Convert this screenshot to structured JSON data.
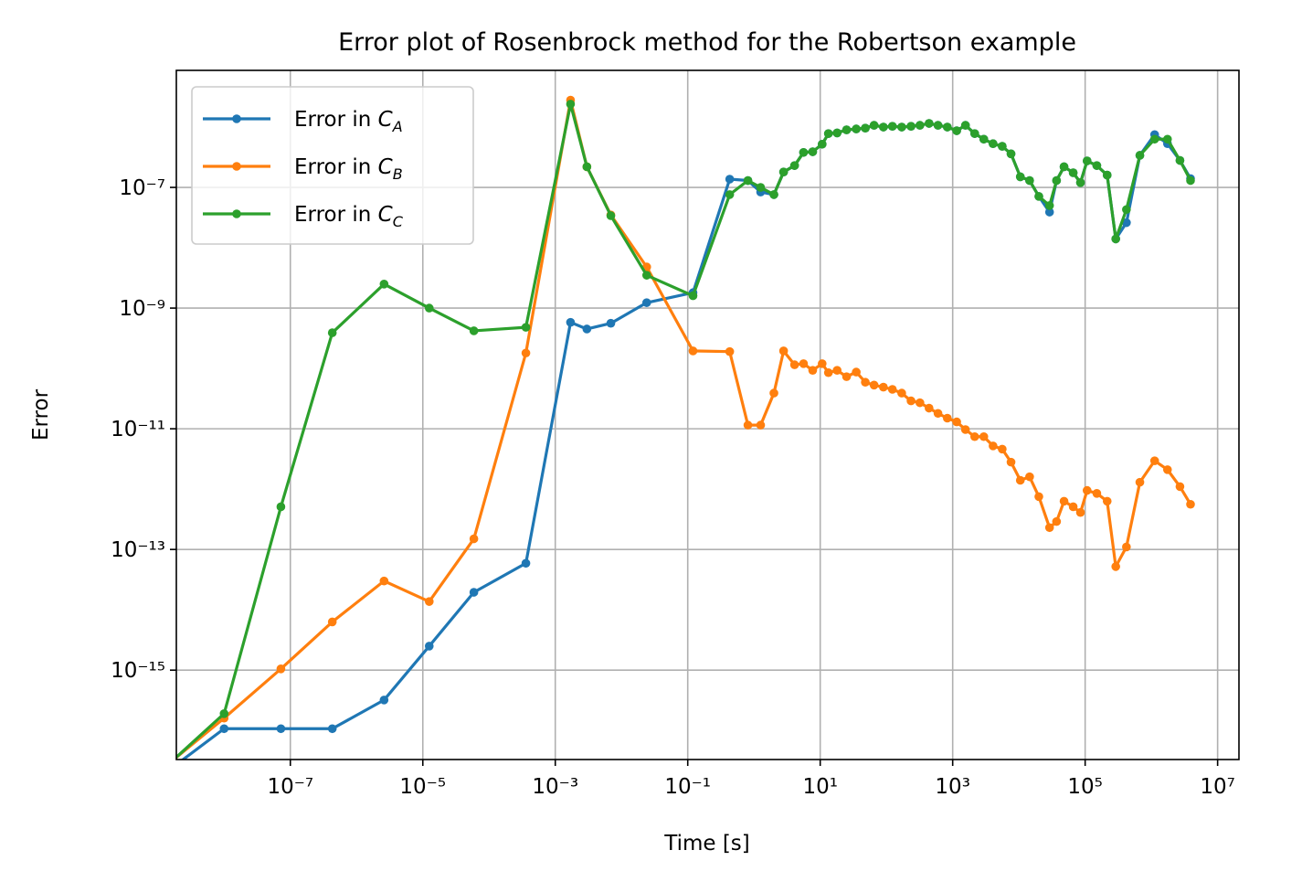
{
  "chart_data": {
    "type": "line",
    "title": "Error plot of Rosenbrock method for the Robertson example",
    "x_label": "Time [s]",
    "y_label": "Error",
    "x_scale": "log",
    "y_scale": "log",
    "grid": true,
    "legend": "upper left",
    "xlim": [
      1.9e-09,
      21000000.0
    ],
    "ylim": [
      3.3e-17,
      8.7e-06
    ],
    "xticks": [
      {
        "value": 1e-07,
        "label": "10⁻⁷"
      },
      {
        "value": 1e-05,
        "label": "10⁻⁵"
      },
      {
        "value": 0.001,
        "label": "10⁻³"
      },
      {
        "value": 0.1,
        "label": "10⁻¹"
      },
      {
        "value": 10,
        "label": "10¹"
      },
      {
        "value": 1000,
        "label": "10³"
      },
      {
        "value": 100000,
        "label": "10⁵"
      },
      {
        "value": 10000000,
        "label": "10⁷"
      }
    ],
    "yticks": [
      {
        "value": 1e-15,
        "label": "10⁻¹⁵"
      },
      {
        "value": 1e-13,
        "label": "10⁻¹³"
      },
      {
        "value": 1e-11,
        "label": "10⁻¹¹"
      },
      {
        "value": 1e-09,
        "label": "10⁻⁹"
      },
      {
        "value": 1e-07,
        "label": "10⁻⁷"
      }
    ],
    "x": [
      1e-09,
      1e-08,
      7.2e-08,
      4.3e-07,
      2.6e-06,
      1.25e-05,
      5.9e-05,
      0.00036,
      0.0017,
      0.003,
      0.0069,
      0.024,
      0.12,
      0.43,
      0.81,
      1.26,
      2.0,
      2.8,
      4.1,
      5.6,
      7.7,
      10.7,
      13.3,
      18,
      25,
      35,
      48,
      65,
      90,
      123,
      170,
      235,
      320,
      440,
      600,
      830,
      1150,
      1560,
      2150,
      2950,
      4070,
      5600,
      7600,
      10500,
      14500,
      20000,
      29000,
      37000,
      48000,
      66000,
      85000,
      107000,
      150000,
      215000,
      290000,
      420000,
      670000,
      1120000,
      1750000,
      2700000,
      3900000
    ],
    "series": [
      {
        "name": "Error in C_A",
        "color": "#1f77b4",
        "values": [
          1.6e-17,
          1.07e-16,
          1.07e-16,
          1.07e-16,
          3.2e-16,
          2.5e-15,
          1.95e-14,
          5.9e-14,
          5.8e-10,
          4.5e-10,
          5.6e-10,
          1.23e-09,
          1.8e-09,
          1.37e-07,
          1.3e-07,
          8.4e-08,
          7.6e-08,
          1.8e-07,
          2.3e-07,
          3.8e-07,
          3.9e-07,
          5.2e-07,
          7.8e-07,
          8e-07,
          9e-07,
          9.3e-07,
          9.6e-07,
          1.07e-06,
          1e-06,
          1.03e-06,
          1e-06,
          1.03e-06,
          1.07e-06,
          1.15e-06,
          1.07e-06,
          1e-06,
          8.7e-07,
          1.07e-06,
          7.8e-07,
          6.3e-07,
          5.3e-07,
          4.8e-07,
          3.6e-07,
          1.5e-07,
          1.3e-07,
          7.1e-08,
          3.9e-08,
          1.3e-07,
          2.2e-07,
          1.75e-07,
          1.2e-07,
          2.75e-07,
          2.3e-07,
          1.6e-07,
          1.4e-08,
          2.6e-08,
          3.4e-07,
          7.5e-07,
          5.3e-07,
          2.8e-07,
          1.4e-07
        ]
      },
      {
        "name": "Error in C_B",
        "color": "#ff7f0e",
        "values": [
          2e-17,
          1.6e-16,
          1.05e-15,
          6.3e-15,
          3e-14,
          1.37e-14,
          1.5e-13,
          1.8e-10,
          2.8e-06,
          2.2e-07,
          3.5e-08,
          4.8e-09,
          1.95e-10,
          1.9e-10,
          1.15e-11,
          1.15e-11,
          3.9e-11,
          1.95e-10,
          1.15e-10,
          1.2e-10,
          9.3e-11,
          1.2e-10,
          8.5e-11,
          9.3e-11,
          7.3e-11,
          8.7e-11,
          5.9e-11,
          5.3e-11,
          4.9e-11,
          4.5e-11,
          3.9e-11,
          2.9e-11,
          2.7e-11,
          2.2e-11,
          1.8e-11,
          1.5e-11,
          1.3e-11,
          9.7e-12,
          7.4e-12,
          7.4e-12,
          5.2e-12,
          4.6e-12,
          2.8e-12,
          1.4e-12,
          1.6e-12,
          7.5e-13,
          2.3e-13,
          2.9e-13,
          6.3e-13,
          5.1e-13,
          4.1e-13,
          9.5e-13,
          8.5e-13,
          6.3e-13,
          5.2e-14,
          1.1e-13,
          1.3e-12,
          2.95e-12,
          2.1e-12,
          1.1e-12,
          5.6e-13
        ]
      },
      {
        "name": "Error in C_C",
        "color": "#2ca02c",
        "values": [
          1.9e-17,
          1.9e-16,
          5.1e-13,
          3.9e-10,
          2.5e-09,
          1e-09,
          4.2e-10,
          4.8e-10,
          2.4e-06,
          2.2e-07,
          3.4e-08,
          3.5e-09,
          1.6e-09,
          7.6e-08,
          1.3e-07,
          1e-07,
          7.6e-08,
          1.8e-07,
          2.3e-07,
          3.8e-07,
          3.9e-07,
          5.2e-07,
          7.8e-07,
          8e-07,
          9e-07,
          9.3e-07,
          9.6e-07,
          1.07e-06,
          1e-06,
          1.03e-06,
          1e-06,
          1.03e-06,
          1.07e-06,
          1.15e-06,
          1.07e-06,
          1e-06,
          8.7e-07,
          1.07e-06,
          7.8e-07,
          6.3e-07,
          5.3e-07,
          4.8e-07,
          3.6e-07,
          1.5e-07,
          1.3e-07,
          7.1e-08,
          5e-08,
          1.3e-07,
          2.2e-07,
          1.75e-07,
          1.2e-07,
          2.75e-07,
          2.3e-07,
          1.6e-07,
          1.4e-08,
          4.3e-08,
          3.4e-07,
          6.3e-07,
          6.3e-07,
          2.8e-07,
          1.3e-07
        ]
      }
    ]
  }
}
